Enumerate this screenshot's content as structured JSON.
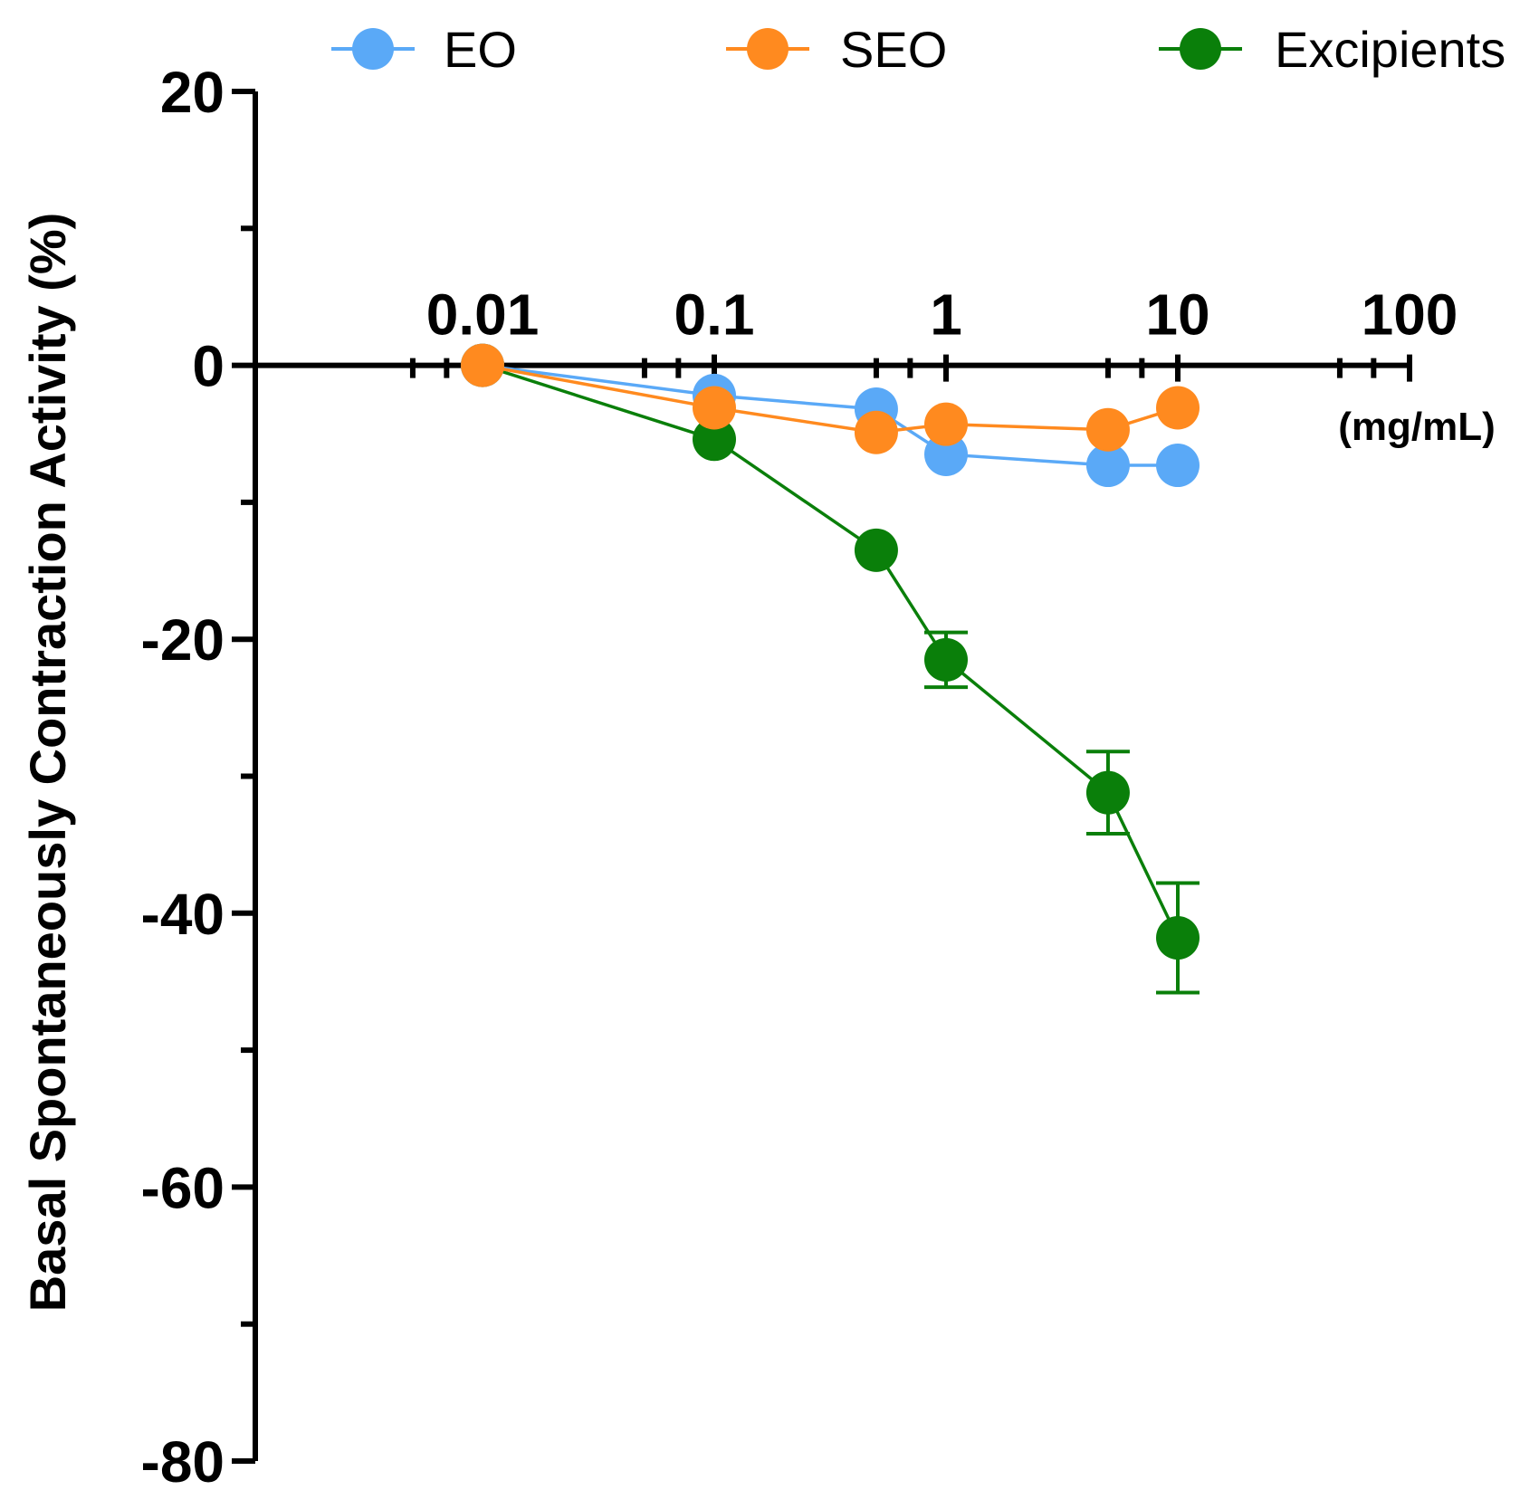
{
  "chart_data": {
    "type": "line",
    "title": "",
    "xlabel": "(mg/mL)",
    "ylabel": "Basal Spontaneously Contraction Activity (%)",
    "xscale": "log",
    "xlim": [
      0.001,
      100
    ],
    "ylim": [
      -80,
      20
    ],
    "x_ticks": [
      0.01,
      0.1,
      1,
      10,
      100
    ],
    "x_tick_labels": [
      "0.01",
      "0.1",
      "1",
      "10",
      "100"
    ],
    "y_ticks": [
      20,
      0,
      -20,
      -40,
      -60,
      -80
    ],
    "y_tick_labels": [
      "20",
      "0",
      "-20",
      "-40",
      "-60",
      "-80"
    ],
    "legend_position": "top",
    "grid": false,
    "series": [
      {
        "name": "EO",
        "color": "#5aa9f7",
        "x": [
          0.01,
          0.1,
          0.5,
          1,
          5,
          10
        ],
        "values": [
          0,
          -2.2,
          -3.2,
          -6.5,
          -7.3,
          -7.3
        ],
        "errors": [
          0,
          0,
          0,
          0,
          0,
          0
        ]
      },
      {
        "name": "SEO",
        "color": "#ff8a1f",
        "x": [
          0.01,
          0.1,
          0.5,
          1,
          5,
          10
        ],
        "values": [
          0,
          -3.1,
          -4.9,
          -4.3,
          -4.7,
          -3.1
        ],
        "errors": [
          0,
          0,
          0,
          0,
          0,
          0
        ]
      },
      {
        "name": "Excipients",
        "color": "#0a7f0a",
        "x": [
          0.01,
          0.1,
          0.5,
          1,
          5,
          10
        ],
        "values": [
          0,
          -5.4,
          -13.5,
          -21.5,
          -31.2,
          -41.8
        ],
        "errors": [
          0,
          0,
          0,
          2.0,
          3.0,
          4.0
        ]
      }
    ]
  }
}
